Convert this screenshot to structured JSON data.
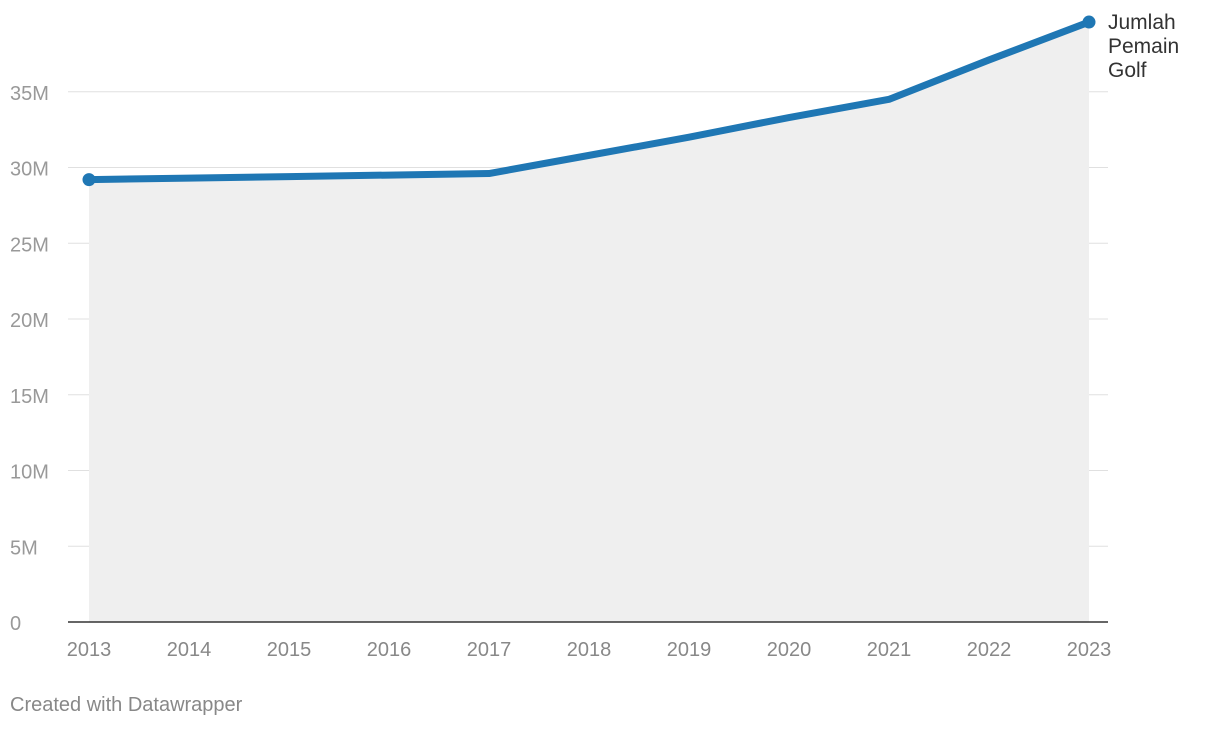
{
  "chart_data": {
    "type": "area",
    "title": "",
    "xlabel": "",
    "ylabel": "",
    "x": [
      2013,
      2014,
      2015,
      2016,
      2017,
      2018,
      2019,
      2020,
      2021,
      2022,
      2023
    ],
    "x_ticks": [
      "2013",
      "2014",
      "2015",
      "2016",
      "2017",
      "2018",
      "2019",
      "2020",
      "2021",
      "2022",
      "2023"
    ],
    "series": [
      {
        "name": "Jumlah Pemain Golf",
        "label_lines": [
          "Jumlah",
          "Pemain",
          "Golf"
        ],
        "values": [
          29200000,
          29300000,
          29400000,
          29500000,
          29600000,
          30800000,
          32000000,
          33300000,
          34500000,
          37100000,
          39600000
        ]
      }
    ],
    "y_ticks": [
      {
        "value": 0,
        "label": "0"
      },
      {
        "value": 5000000,
        "label": "5M"
      },
      {
        "value": 10000000,
        "label": "10M"
      },
      {
        "value": 15000000,
        "label": "15M"
      },
      {
        "value": 20000000,
        "label": "20M"
      },
      {
        "value": 25000000,
        "label": "25M"
      },
      {
        "value": 30000000,
        "label": "30M"
      },
      {
        "value": 35000000,
        "label": "35M"
      }
    ],
    "ylim": [
      0,
      40000000
    ],
    "xlim": [
      2013,
      2023
    ],
    "grid": true,
    "legend": "end-of-line label",
    "colors": {
      "line": "#1f77b4",
      "area": "#efefef",
      "grid": "#e0e0e0",
      "axis": "#333333",
      "tick_text": "#999999",
      "x_tick_text": "#888888",
      "series_label": "#333333"
    }
  },
  "footer": {
    "credit": "Created with Datawrapper"
  }
}
